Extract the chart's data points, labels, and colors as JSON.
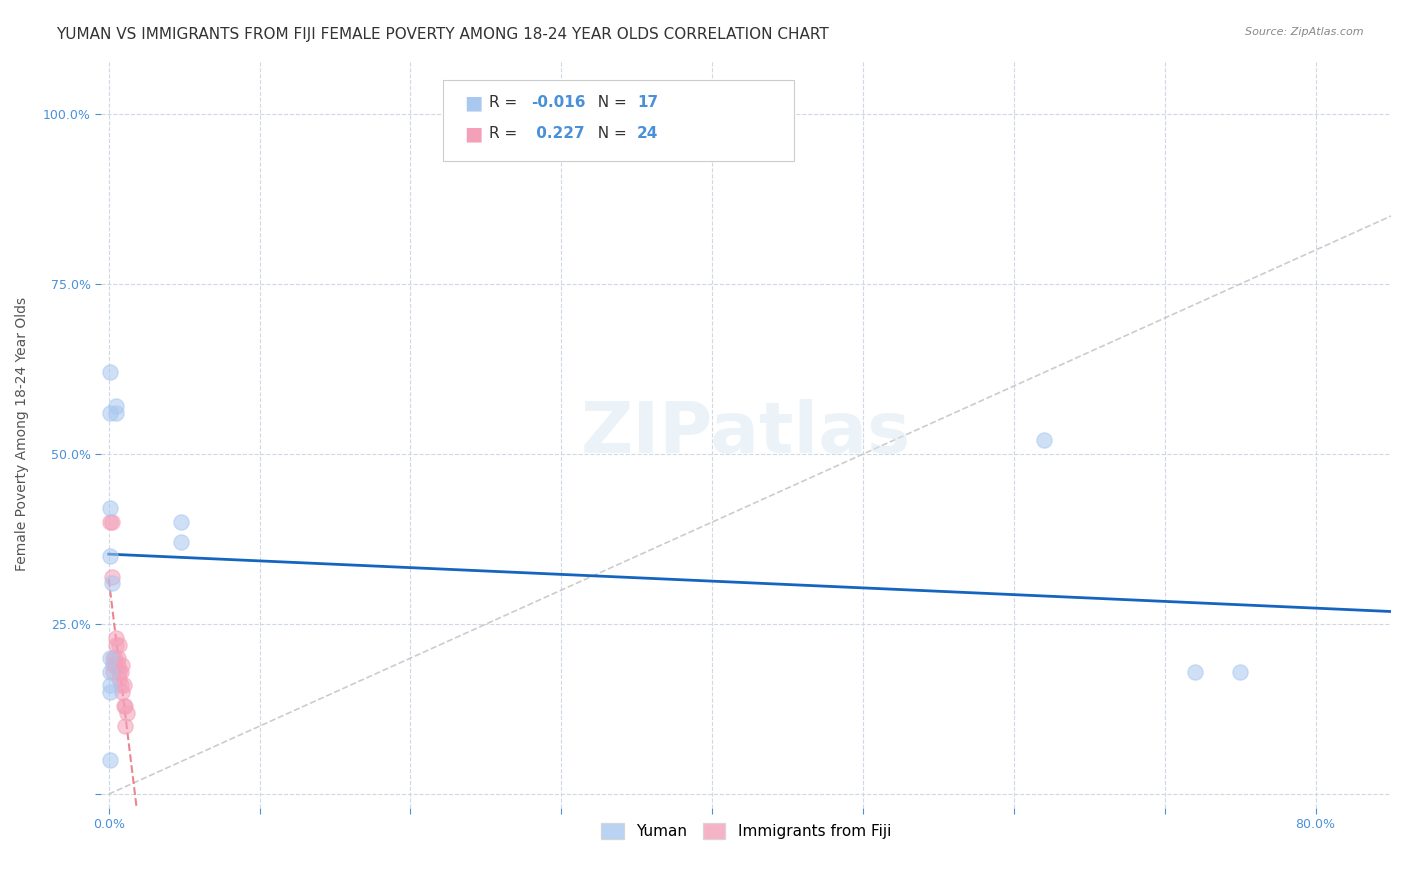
{
  "title": "YUMAN VS IMMIGRANTS FROM FIJI FEMALE POVERTY AMONG 18-24 YEAR OLDS CORRELATION CHART",
  "source": "Source: ZipAtlas.com",
  "xlabel_bottom": "",
  "ylabel": "Female Poverty Among 18-24 Year Olds",
  "x_ticks": [
    0.0,
    0.1,
    0.2,
    0.3,
    0.4,
    0.5,
    0.6,
    0.7,
    0.8
  ],
  "x_tick_labels": [
    "0.0%",
    "",
    "",
    "",
    "",
    "",
    "",
    "",
    "80.0%"
  ],
  "y_ticks": [
    0.0,
    0.25,
    0.5,
    0.75,
    1.0
  ],
  "y_tick_labels": [
    "",
    "25.0%",
    "50.0%",
    "75.0%",
    "100.0%"
  ],
  "xlim": [
    -0.005,
    0.85
  ],
  "ylim": [
    -0.02,
    1.08
  ],
  "legend_r_yuman": "-0.016",
  "legend_n_yuman": "17",
  "legend_r_fiji": "0.227",
  "legend_n_fiji": "24",
  "yuman_color": "#a8c8f0",
  "fiji_color": "#f4a0b8",
  "trend_yuman_color": "#1565c0",
  "trend_fiji_color": "#e8707a",
  "diagonal_color": "#c0c0c0",
  "yuman_points_x": [
    0.001,
    0.001,
    0.005,
    0.005,
    0.001,
    0.001,
    0.002,
    0.001,
    0.001,
    0.001,
    0.048,
    0.048,
    0.001,
    0.001,
    0.62,
    0.72,
    0.75
  ],
  "yuman_points_y": [
    0.62,
    0.56,
    0.56,
    0.57,
    0.42,
    0.35,
    0.31,
    0.2,
    0.18,
    0.16,
    0.4,
    0.37,
    0.05,
    0.15,
    0.52,
    0.18,
    0.18
  ],
  "fiji_points_x": [
    0.001,
    0.002,
    0.002,
    0.003,
    0.003,
    0.003,
    0.004,
    0.004,
    0.005,
    0.005,
    0.006,
    0.006,
    0.007,
    0.007,
    0.007,
    0.008,
    0.008,
    0.009,
    0.009,
    0.01,
    0.01,
    0.011,
    0.011,
    0.012
  ],
  "fiji_points_y": [
    0.4,
    0.4,
    0.32,
    0.2,
    0.19,
    0.18,
    0.2,
    0.19,
    0.23,
    0.22,
    0.19,
    0.2,
    0.22,
    0.18,
    0.17,
    0.18,
    0.16,
    0.19,
    0.15,
    0.16,
    0.13,
    0.13,
    0.1,
    0.12
  ],
  "dot_size": 120,
  "dot_alpha": 0.55,
  "background_color": "#ffffff",
  "grid_color": "#d0d8e8",
  "title_fontsize": 11,
  "axis_label_fontsize": 10,
  "tick_label_fontsize": 9,
  "legend_fontsize": 11
}
